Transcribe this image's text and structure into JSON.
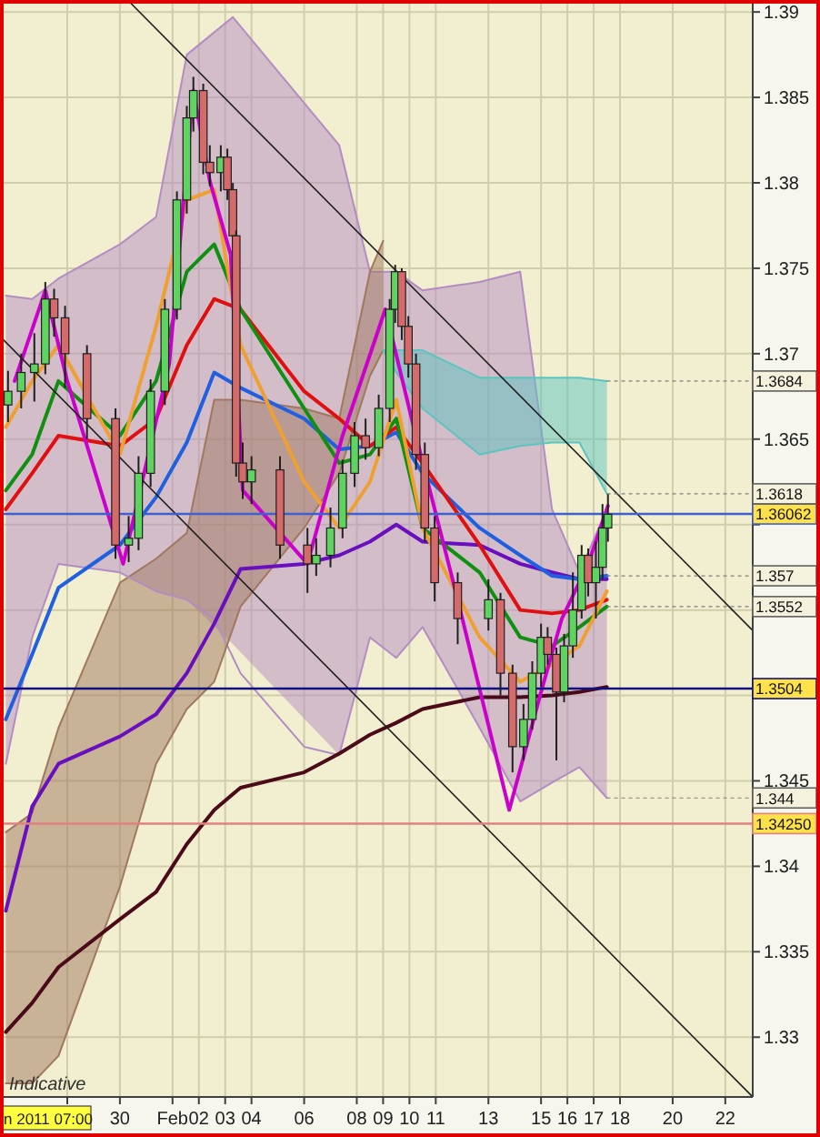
{
  "chart_data": {
    "type": "candlestick",
    "x": [
      "2011-01-25T18:00",
      "2011-01-26T06:00",
      "2011-01-26T18:00",
      "2011-01-27T04:00",
      "2011-01-27T12:00",
      "2011-01-27T22:00",
      "2011-01-28T18:00",
      "2011-01-29T20:00",
      "2011-01-30T08:00",
      "2011-01-30T17:00",
      "2011-01-31T04:00",
      "2011-01-31T17:00",
      "2011-02-01T04:00",
      "2011-02-01T13:00",
      "2011-02-01T19:00",
      "2011-02-02T04:00",
      "2011-02-02T10:00",
      "2011-02-02T20:00",
      "2011-02-03T02:00",
      "2011-02-03T07:00",
      "2011-02-03T10:00",
      "2011-02-03T16:00",
      "2011-02-04T00:00",
      "2011-02-05T02:00",
      "2011-02-06T03:00",
      "2011-02-06T11:00",
      "2011-02-07T00:00",
      "2011-02-07T11:00",
      "2011-02-07T22:00",
      "2011-02-08T08:00",
      "2011-02-08T20:00",
      "2011-02-09T06:00",
      "2011-02-09T11:00",
      "2011-02-09T17:00",
      "2011-02-09T23:00",
      "2011-02-10T06:00",
      "2011-02-10T14:00",
      "2011-02-10T23:00",
      "2011-02-11T20:00",
      "2011-02-13T00:00",
      "2011-02-13T11:00",
      "2011-02-13T22:00",
      "2011-02-14T08:00",
      "2011-02-14T16:00",
      "2011-02-15T00:00",
      "2011-02-15T06:00",
      "2011-02-15T14:00",
      "2011-02-15T21:00",
      "2011-02-16T05:00",
      "2011-02-16T13:00",
      "2011-02-16T19:00",
      "2011-02-17T02:00",
      "2011-02-17T08:00",
      "2011-02-17T13:00"
    ],
    "ohlc": [
      [
        1.367,
        1.369,
        1.366,
        1.3678
      ],
      [
        1.3678,
        1.37,
        1.3668,
        1.3689
      ],
      [
        1.3689,
        1.3712,
        1.3672,
        1.3694
      ],
      [
        1.3694,
        1.3742,
        1.3688,
        1.3732
      ],
      [
        1.3732,
        1.3738,
        1.371,
        1.3721
      ],
      [
        1.3721,
        1.3728,
        1.368,
        1.37
      ],
      [
        1.37,
        1.3705,
        1.365,
        1.3662
      ],
      [
        1.3662,
        1.3668,
        1.358,
        1.3588
      ],
      [
        1.3588,
        1.3605,
        1.3578,
        1.3592
      ],
      [
        1.3592,
        1.364,
        1.3585,
        1.363
      ],
      [
        1.363,
        1.3685,
        1.3622,
        1.3678
      ],
      [
        1.3678,
        1.3732,
        1.367,
        1.3726
      ],
      [
        1.3726,
        1.3795,
        1.372,
        1.379
      ],
      [
        1.379,
        1.3845,
        1.3782,
        1.3838
      ],
      [
        1.3838,
        1.3862,
        1.383,
        1.3854
      ],
      [
        1.3854,
        1.3858,
        1.3805,
        1.3812
      ],
      [
        1.3812,
        1.3822,
        1.3798,
        1.3806
      ],
      [
        1.3806,
        1.3822,
        1.3795,
        1.3815
      ],
      [
        1.3815,
        1.382,
        1.379,
        1.3796
      ],
      [
        1.3796,
        1.38,
        1.376,
        1.3769
      ],
      [
        1.3769,
        1.3772,
        1.3628,
        1.3636
      ],
      [
        1.3636,
        1.3648,
        1.3615,
        1.3625
      ],
      [
        1.3625,
        1.364,
        1.3612,
        1.3632
      ],
      [
        1.3632,
        1.364,
        1.358,
        1.3588
      ],
      [
        1.3588,
        1.3598,
        1.356,
        1.3577
      ],
      [
        1.3577,
        1.3592,
        1.357,
        1.3582
      ],
      [
        1.3582,
        1.361,
        1.3575,
        1.3598
      ],
      [
        1.3598,
        1.3638,
        1.3592,
        1.363
      ],
      [
        1.363,
        1.366,
        1.3622,
        1.3652
      ],
      [
        1.3652,
        1.3662,
        1.3638,
        1.3645
      ],
      [
        1.3645,
        1.3676,
        1.364,
        1.3668
      ],
      [
        1.3668,
        1.3732,
        1.366,
        1.3726
      ],
      [
        1.3726,
        1.3752,
        1.3718,
        1.3748
      ],
      [
        1.3748,
        1.375,
        1.3708,
        1.3716
      ],
      [
        1.3716,
        1.3722,
        1.3686,
        1.3694
      ],
      [
        1.3694,
        1.37,
        1.3632,
        1.3641
      ],
      [
        1.3641,
        1.3648,
        1.359,
        1.3598
      ],
      [
        1.3598,
        1.3605,
        1.3555,
        1.3566
      ],
      [
        1.3566,
        1.3572,
        1.353,
        1.3545
      ],
      [
        1.3545,
        1.3568,
        1.3538,
        1.3556
      ],
      [
        1.3556,
        1.356,
        1.35,
        1.3513
      ],
      [
        1.3513,
        1.3518,
        1.3455,
        1.347
      ],
      [
        1.347,
        1.3495,
        1.3462,
        1.3486
      ],
      [
        1.3486,
        1.352,
        1.348,
        1.3513
      ],
      [
        1.3513,
        1.3542,
        1.3505,
        1.3534
      ],
      [
        1.3534,
        1.354,
        1.3518,
        1.3524
      ],
      [
        1.3524,
        1.3528,
        1.3462,
        1.3502
      ],
      [
        1.3502,
        1.3536,
        1.3496,
        1.3529
      ],
      [
        1.3529,
        1.3572,
        1.3522,
        1.355
      ],
      [
        1.355,
        1.3588,
        1.3545,
        1.3582
      ],
      [
        1.3582,
        1.3586,
        1.3558,
        1.3566
      ],
      [
        1.3566,
        1.359,
        1.3545,
        1.3575
      ],
      [
        1.3575,
        1.3612,
        1.3568,
        1.3598
      ],
      [
        1.3598,
        1.3618,
        1.359,
        1.3606
      ]
    ],
    "series": [
      {
        "type": "line",
        "color": "#b48cc4",
        "x": [
          "2011-01-25T16:00",
          "2011-01-26T16:00",
          "2011-01-27T16:00",
          "2011-01-30T00:00",
          "2011-01-31T09:00",
          "2011-02-01T13:00",
          "2011-02-03T07:00",
          "2011-02-07T08:00",
          "2011-02-08T12:00",
          "2011-02-09T12:00",
          "2011-02-10T12:00",
          "2011-02-12T16:00",
          "2011-02-14T05:00",
          "2011-02-15T10:00",
          "2011-02-16T11:00",
          "2011-02-17T12:00"
        ],
        "values": [
          1.3734,
          1.3732,
          1.3744,
          1.3764,
          1.378,
          1.3875,
          1.3897,
          1.3822,
          1.3748,
          1.3748,
          1.3737,
          1.3742,
          1.3748,
          1.3609,
          1.3572,
          1.3609
        ],
        "upper": [
          1.3734,
          1.3732,
          1.3744,
          1.3764,
          1.378,
          1.3875,
          1.3897,
          1.3822,
          1.3748,
          1.3748,
          1.3737,
          1.3742,
          1.3748,
          1.3609,
          1.3572,
          1.3609
        ],
        "lower": [
          1.346,
          1.3534,
          1.3577,
          1.3572,
          1.3561,
          1.3556,
          1.353,
          1.3465,
          1.3534,
          1.3522,
          1.354,
          1.3481,
          1.3438,
          1.3449,
          1.3458,
          1.344
        ]
      },
      {
        "type": "line",
        "color": "#a07860",
        "x": [
          "2011-01-25T16:00",
          "2011-01-26T16:00",
          "2011-01-27T16:00",
          "2011-01-30T00:00",
          "2011-01-31T09:00",
          "2011-02-01T13:00",
          "2011-02-02T14:00",
          "2011-02-03T14:00",
          "2011-02-06T00:00",
          "2011-02-07T08:00",
          "2011-02-08T12:00",
          "2011-02-09T00:00"
        ],
        "values": [
          1.342,
          1.3431,
          1.3481,
          1.3566,
          1.358,
          1.3595,
          1.3673,
          1.3673,
          1.3668,
          1.3662,
          1.3748,
          1.3766
        ],
        "upper": [
          1.342,
          1.3431,
          1.3481,
          1.3566,
          1.358,
          1.3595,
          1.3673,
          1.3673,
          1.3668,
          1.3662,
          1.3748,
          1.3766
        ],
        "lower": [
          1.3273,
          1.3273,
          1.3289,
          1.3388,
          1.346,
          1.3492,
          1.3508,
          1.3552,
          1.3598,
          1.363,
          1.3687,
          1.3702
        ]
      },
      {
        "type": "line",
        "color": "#5cc4c0",
        "x": [
          "2011-02-09T00:00",
          "2011-02-09T12:00",
          "2011-02-10T12:00",
          "2011-02-12T16:00",
          "2011-02-14T05:00",
          "2011-02-15T10:00",
          "2011-02-16T11:00",
          "2011-02-17T12:00"
        ],
        "values": [
          1.3702,
          1.3702,
          1.3702,
          1.3686,
          1.3686,
          1.3686,
          1.3686,
          1.3684
        ],
        "upper": [
          1.3702,
          1.3702,
          1.3702,
          1.3686,
          1.3686,
          1.3686,
          1.3686,
          1.3684
        ],
        "lower": [
          1.3702,
          1.3689,
          1.3668,
          1.3641,
          1.3646,
          1.3648,
          1.3648,
          1.3618
        ]
      },
      {
        "type": "line",
        "color": "#b48cc4",
        "x": [
          "2011-01-25T16:00",
          "2011-01-26T16:00",
          "2011-01-27T16:00",
          "2011-01-30T00:00",
          "2011-01-31T09:00",
          "2011-02-01T13:00",
          "2011-02-02T14:00",
          "2011-02-03T14:00",
          "2011-02-06T00:00",
          "2011-02-07T08:00",
          "2011-02-08T12:00",
          "2011-02-09T12:00",
          "2011-02-10T12:00",
          "2011-02-12T16:00",
          "2011-02-14T05:00",
          "2011-02-15T10:00",
          "2011-02-16T11:00",
          "2011-02-17T12:00"
        ],
        "values": [
          1.346,
          1.3534,
          1.3577,
          1.3572,
          1.3561,
          1.3556,
          1.3545,
          1.3513,
          1.347,
          1.3465,
          1.3534,
          1.3522,
          1.354,
          1.3481,
          1.3438,
          1.3449,
          1.3458,
          1.344
        ]
      },
      {
        "type": "line",
        "color": "#a07860",
        "x": [
          "2011-01-25T16:00",
          "2011-01-26T16:00",
          "2011-01-27T16:00",
          "2011-01-30T00:00",
          "2011-01-31T09:00",
          "2011-02-01T13:00",
          "2011-02-02T14:00",
          "2011-02-03T14:00",
          "2011-02-06T00:00",
          "2011-02-07T08:00",
          "2011-02-08T12:00",
          "2011-02-09T00:00"
        ],
        "values": [
          1.3273,
          1.3273,
          1.3289,
          1.3388,
          1.346,
          1.3492,
          1.3508,
          1.3552,
          1.3598,
          1.363,
          1.3687,
          1.3702
        ]
      },
      {
        "type": "line",
        "color": "#5cc4c0",
        "x": [
          "2011-02-09T00:00",
          "2011-02-09T12:00",
          "2011-02-10T12:00",
          "2011-02-12T16:00",
          "2011-02-14T05:00",
          "2011-02-15T10:00",
          "2011-02-16T11:00",
          "2011-02-17T12:00"
        ],
        "values": [
          1.3702,
          1.3689,
          1.3668,
          1.3641,
          1.3646,
          1.3648,
          1.3648,
          1.3618
        ]
      },
      {
        "type": "line",
        "color": "#4a0a1a",
        "x": [
          "2011-01-25T16:00",
          "2011-01-26T16:00",
          "2011-01-27T16:00",
          "2011-01-30T00:00",
          "2011-01-31T09:00",
          "2011-02-01T13:00",
          "2011-02-02T14:00",
          "2011-02-03T14:00",
          "2011-02-06T00:00",
          "2011-02-07T08:00",
          "2011-02-08T12:00",
          "2011-02-09T12:00",
          "2011-02-10T12:00",
          "2011-02-12T16:00",
          "2011-02-14T05:00",
          "2011-02-15T10:00",
          "2011-02-16T11:00",
          "2011-02-17T12:00"
        ],
        "values": [
          1.3303,
          1.332,
          1.3341,
          1.3369,
          1.3385,
          1.3413,
          1.3433,
          1.3446,
          1.3455,
          1.3466,
          1.3477,
          1.3484,
          1.3492,
          1.3499,
          1.3499,
          1.35,
          1.3502,
          1.3505
        ]
      },
      {
        "type": "line",
        "color": "#6a0fbf",
        "x": [
          "2011-01-25T16:00",
          "2011-01-26T16:00",
          "2011-01-27T16:00",
          "2011-01-30T00:00",
          "2011-01-31T09:00",
          "2011-02-01T13:00",
          "2011-02-02T14:00",
          "2011-02-03T14:00",
          "2011-02-06T00:00",
          "2011-02-07T08:00",
          "2011-02-08T12:00",
          "2011-02-09T12:00",
          "2011-02-10T12:00",
          "2011-02-12T16:00",
          "2011-02-14T05:00",
          "2011-02-15T10:00",
          "2011-02-16T11:00",
          "2011-02-17T12:00"
        ],
        "values": [
          1.3374,
          1.3435,
          1.346,
          1.3476,
          1.3489,
          1.3513,
          1.3542,
          1.3574,
          1.3577,
          1.3582,
          1.359,
          1.36,
          1.359,
          1.3588,
          1.3577,
          1.3572,
          1.3568,
          1.3568
        ]
      },
      {
        "type": "line",
        "color": "#2060e0",
        "x": [
          "2011-01-25T16:00",
          "2011-01-26T16:00",
          "2011-01-27T16:00",
          "2011-01-30T00:00",
          "2011-01-31T09:00",
          "2011-02-01T13:00",
          "2011-02-02T14:00",
          "2011-02-03T14:00",
          "2011-02-06T00:00",
          "2011-02-07T08:00",
          "2011-02-08T12:00",
          "2011-02-09T12:00",
          "2011-02-10T12:00",
          "2011-02-12T16:00",
          "2011-02-14T05:00",
          "2011-02-15T10:00",
          "2011-02-16T11:00",
          "2011-02-17T12:00"
        ],
        "values": [
          1.3486,
          1.3524,
          1.3563,
          1.3588,
          1.3616,
          1.3648,
          1.3689,
          1.368,
          1.3662,
          1.3644,
          1.3646,
          1.3654,
          1.363,
          1.3598,
          1.3582,
          1.357,
          1.3568,
          1.357
        ]
      },
      {
        "type": "line",
        "color": "#e01010",
        "x": [
          "2011-01-25T16:00",
          "2011-01-26T16:00",
          "2011-01-27T16:00",
          "2011-01-30T00:00",
          "2011-01-31T09:00",
          "2011-02-01T13:00",
          "2011-02-02T14:00",
          "2011-02-03T14:00",
          "2011-02-06T00:00",
          "2011-02-07T08:00",
          "2011-02-08T12:00",
          "2011-02-09T12:00",
          "2011-02-10T12:00",
          "2011-02-12T16:00",
          "2011-02-14T05:00",
          "2011-02-15T10:00",
          "2011-02-16T11:00",
          "2011-02-17T12:00"
        ],
        "values": [
          1.3609,
          1.363,
          1.3652,
          1.3646,
          1.3662,
          1.3705,
          1.3732,
          1.3726,
          1.3678,
          1.3662,
          1.3646,
          1.3657,
          1.3636,
          1.3588,
          1.355,
          1.3548,
          1.355,
          1.3556
        ]
      },
      {
        "type": "line",
        "color": "#109010",
        "x": [
          "2011-01-25T16:00",
          "2011-01-26T16:00",
          "2011-01-27T16:00",
          "2011-01-30T00:00",
          "2011-01-31T09:00",
          "2011-02-01T13:00",
          "2011-02-02T14:00",
          "2011-02-03T14:00",
          "2011-02-06T00:00",
          "2011-02-07T08:00",
          "2011-02-08T12:00",
          "2011-02-09T12:00",
          "2011-02-10T12:00",
          "2011-02-12T16:00",
          "2011-02-14T05:00",
          "2011-02-15T10:00",
          "2011-02-16T11:00",
          "2011-02-17T12:00"
        ],
        "values": [
          1.362,
          1.3641,
          1.3684,
          1.3652,
          1.3684,
          1.3748,
          1.3764,
          1.3726,
          1.3668,
          1.3636,
          1.3641,
          1.3662,
          1.3598,
          1.3572,
          1.3534,
          1.3529,
          1.354,
          1.3552
        ]
      },
      {
        "type": "line",
        "color": "#f0a030",
        "x": [
          "2011-01-25T16:00",
          "2011-01-26T16:00",
          "2011-01-27T16:00",
          "2011-01-30T00:00",
          "2011-01-31T09:00",
          "2011-02-01T13:00",
          "2011-02-02T14:00",
          "2011-02-03T14:00",
          "2011-02-06T00:00",
          "2011-02-07T08:00",
          "2011-02-08T12:00",
          "2011-02-09T12:00",
          "2011-02-10T12:00",
          "2011-02-12T16:00",
          "2011-02-14T05:00",
          "2011-02-15T10:00",
          "2011-02-16T11:00",
          "2011-02-17T12:00"
        ],
        "values": [
          1.3657,
          1.3684,
          1.3705,
          1.3641,
          1.3716,
          1.379,
          1.3796,
          1.3705,
          1.3625,
          1.3598,
          1.3625,
          1.3673,
          1.3598,
          1.3534,
          1.3508,
          1.3518,
          1.3529,
          1.3561
        ]
      },
      {
        "type": "line",
        "color": "#cc00cc",
        "x": [
          "2011-01-26T00:00",
          "2011-01-27T04:00",
          "2011-01-28T00:00",
          "2011-01-30T03:00",
          "2011-01-31T21:00",
          "2011-02-01T19:00",
          "2011-02-02T10:00",
          "2011-02-03T05:00",
          "2011-02-03T16:00",
          "2011-02-06T03:00",
          "2011-02-07T11:00",
          "2011-02-09T02:00",
          "2011-02-10T02:00",
          "2011-02-11T20:00",
          "2011-02-13T19:00",
          "2011-02-15T00:00",
          "2011-02-15T19:00",
          "2011-02-16T19:00",
          "2011-02-17T13:00"
        ],
        "values": [
          1.3684,
          1.3737,
          1.3684,
          1.3577,
          1.3694,
          1.3854,
          1.3801,
          1.3758,
          1.362,
          1.3577,
          1.3652,
          1.3726,
          1.3662,
          1.3556,
          1.3433,
          1.3502,
          1.3545,
          1.3577,
          1.3611
        ]
      },
      {
        "type": "line",
        "color": "#202020",
        "x": [
          "2011-01-30T07:00",
          "2011-02-23T01:00"
        ],
        "values": [
          1.3907,
          1.3538
        ]
      },
      {
        "type": "line",
        "color": "#202020",
        "x": [
          "2011-01-25T14:00",
          "2011-02-23T01:00"
        ],
        "values": [
          1.3708,
          1.3265
        ]
      }
    ],
    "xlim": [
      "2011-01-25T14:00",
      "2011-02-23T01:00"
    ],
    "xticks": [
      {
        "value": "2011-01-28",
        "label": null
      },
      {
        "value": "2011-01-30",
        "label": "30"
      },
      {
        "value": "2011-02-01",
        "label": "Feb"
      },
      {
        "value": "2011-02-02",
        "label": "02"
      },
      {
        "value": "2011-02-03",
        "label": "03"
      },
      {
        "value": "2011-02-04",
        "label": "04"
      },
      {
        "value": "2011-02-06",
        "label": "06"
      },
      {
        "value": "2011-02-08",
        "label": "08"
      },
      {
        "value": "2011-02-09",
        "label": "09"
      },
      {
        "value": "2011-02-10",
        "label": "10"
      },
      {
        "value": "2011-02-11",
        "label": "11"
      },
      {
        "value": "2011-02-13",
        "label": "13"
      },
      {
        "value": "2011-02-15",
        "label": "15"
      },
      {
        "value": "2011-02-16",
        "label": "16"
      },
      {
        "value": "2011-02-17",
        "label": "17"
      },
      {
        "value": "2011-02-18",
        "label": "18"
      },
      {
        "value": "2011-02-20",
        "label": "20"
      },
      {
        "value": "2011-02-22",
        "label": "22"
      }
    ],
    "ylim": [
      1.3265,
      1.3907
    ],
    "yticks": [
      1.33,
      1.335,
      1.34,
      1.345,
      {
        "value": 1.35,
        "label": null
      },
      {
        "value": 1.355,
        "label": null
      },
      {
        "value": 1.36,
        "label": null
      },
      1.365,
      1.37,
      1.375,
      1.38,
      1.385,
      1.39
    ],
    "grid": true,
    "ref_lines": [
      {
        "axis": "y",
        "value": 1.36062,
        "label": "1.36062",
        "color": "#4060d0"
      },
      {
        "axis": "y",
        "value": 1.3504,
        "label": "1.3504",
        "color": "#101080"
      },
      {
        "axis": "y",
        "value": 1.3425,
        "label": "1.34250",
        "color": "#e08080"
      }
    ],
    "annotations": [
      "Indicative",
      "n 2011 07:00",
      {
        "text": "1.3684",
        "x": "2011-02-17T12:00",
        "y": 1.3684
      },
      {
        "text": "1.3618",
        "x": "2011-02-17T12:00",
        "y": 1.3618
      },
      {
        "text": "1.357",
        "x": "2011-02-17T12:00",
        "y": 1.357
      },
      {
        "text": "1.3552",
        "x": "2011-02-17T12:00",
        "y": 1.3552
      },
      {
        "text": "1.344",
        "x": "2011-02-17T12:00",
        "y": 1.344
      }
    ]
  }
}
